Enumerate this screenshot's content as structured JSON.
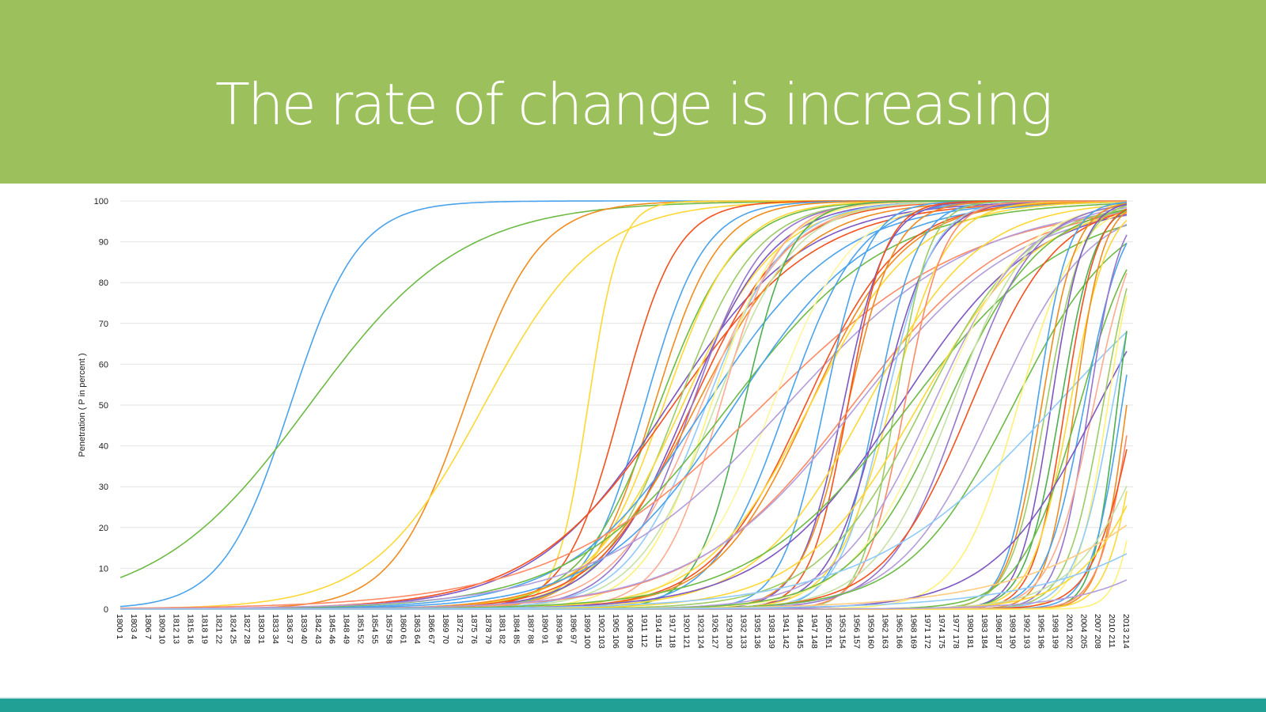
{
  "slide": {
    "title": "The rate of change is increasing",
    "banner_color": "#9cc15c",
    "footer_color": "#21a096"
  },
  "chart_data": {
    "type": "line",
    "title": "",
    "xlabel": "",
    "ylabel": "Penetration ( P in percent )",
    "ylim": [
      0,
      100
    ],
    "yticks": [
      0,
      10,
      20,
      30,
      40,
      50,
      60,
      70,
      80,
      90,
      100
    ],
    "x_start_year": 1800,
    "x_end_year": 2013,
    "x_tick_step_years": 3,
    "x_tick_format": "year index (year, running index starting at 1)",
    "grid": "horizontal",
    "legend": "none",
    "series_model": "logistic: P(year) = 100 / (1 + exp(-k * (year - midpoint)))",
    "series": [
      {
        "midpoint": 1836,
        "k": 0.14,
        "color": "#4aa3ec"
      },
      {
        "midpoint": 1840,
        "k": 0.062,
        "color": "#6dbb45"
      },
      {
        "midpoint": 1873,
        "k": 0.13,
        "color": "#f08c1e"
      },
      {
        "midpoint": 1877,
        "k": 0.085,
        "color": "#fdd835"
      },
      {
        "midpoint": 1899,
        "k": 0.3,
        "color": "#fdd835"
      },
      {
        "midpoint": 1906,
        "k": 0.17,
        "color": "#f4511e"
      },
      {
        "midpoint": 1911,
        "k": 0.16,
        "color": "#4aa3ec"
      },
      {
        "midpoint": 1913,
        "k": 0.15,
        "color": "#f08c1e"
      },
      {
        "midpoint": 1914,
        "k": 0.12,
        "color": "#6dbb45"
      },
      {
        "midpoint": 1915,
        "k": 0.13,
        "color": "#fdd835"
      },
      {
        "midpoint": 1916,
        "k": 0.07,
        "color": "#7e57c2"
      },
      {
        "midpoint": 1917,
        "k": 0.066,
        "color": "#f4511e"
      },
      {
        "midpoint": 1918,
        "k": 0.12,
        "color": "#9ccc65"
      },
      {
        "midpoint": 1919,
        "k": 0.1,
        "color": "#fdd835"
      },
      {
        "midpoint": 1920,
        "k": 0.11,
        "color": "#7e57c2"
      },
      {
        "midpoint": 1921,
        "k": 0.1,
        "color": "#f4511e"
      },
      {
        "midpoint": 1921,
        "k": 0.13,
        "color": "#9575cd"
      },
      {
        "midpoint": 1922,
        "k": 0.09,
        "color": "#f08c1e"
      },
      {
        "midpoint": 1923,
        "k": 0.11,
        "color": "#ffab91"
      },
      {
        "midpoint": 1924,
        "k": 0.12,
        "color": "#90caf9"
      },
      {
        "midpoint": 1924,
        "k": 0.07,
        "color": "#4aa3ec"
      },
      {
        "midpoint": 1925,
        "k": 0.14,
        "color": "#fff176"
      },
      {
        "midpoint": 1926,
        "k": 0.12,
        "color": "#c5e1a5"
      },
      {
        "midpoint": 1927,
        "k": 0.16,
        "color": "#ffab91"
      },
      {
        "midpoint": 1929,
        "k": 0.06,
        "color": "#6dbb45"
      },
      {
        "midpoint": 1930,
        "k": 0.07,
        "color": "#4aa3ec"
      },
      {
        "midpoint": 1932,
        "k": 0.2,
        "color": "#4caf50"
      },
      {
        "midpoint": 1936,
        "k": 0.045,
        "color": "#ff8a65"
      },
      {
        "midpoint": 1938,
        "k": 0.12,
        "color": "#fff59d"
      },
      {
        "midpoint": 1941,
        "k": 0.05,
        "color": "#b39ddb"
      },
      {
        "midpoint": 1941,
        "k": 0.13,
        "color": "#4aa3ec"
      },
      {
        "midpoint": 1945,
        "k": 0.1,
        "color": "#f4511e"
      },
      {
        "midpoint": 1946,
        "k": 0.1,
        "color": "#f08c1e"
      },
      {
        "midpoint": 1946,
        "k": 0.09,
        "color": "#fdd835"
      },
      {
        "midpoint": 1949,
        "k": 0.22,
        "color": "#4aa3ec"
      },
      {
        "midpoint": 1953,
        "k": 0.22,
        "color": "#7e57c2"
      },
      {
        "midpoint": 1954,
        "k": 0.2,
        "color": "#f08c1e"
      },
      {
        "midpoint": 1954,
        "k": 0.25,
        "color": "#f4511e"
      },
      {
        "midpoint": 1955,
        "k": 0.06,
        "color": "#ff8a65"
      },
      {
        "midpoint": 1956,
        "k": 0.058,
        "color": "#b39ddb"
      },
      {
        "midpoint": 1958,
        "k": 0.085,
        "color": "#fdd835"
      },
      {
        "midpoint": 1960,
        "k": 0.23,
        "color": "#4aa3ec"
      },
      {
        "midpoint": 1961,
        "k": 0.18,
        "color": "#7e57c2"
      },
      {
        "midpoint": 1962,
        "k": 0.2,
        "color": "#90caf9"
      },
      {
        "midpoint": 1963,
        "k": 0.17,
        "color": "#fdd835"
      },
      {
        "midpoint": 1964,
        "k": 0.28,
        "color": "#9ccc65"
      },
      {
        "midpoint": 1965,
        "k": 0.07,
        "color": "#7e57c2"
      },
      {
        "midpoint": 1966,
        "k": 0.24,
        "color": "#ff8a65"
      },
      {
        "midpoint": 1967,
        "k": 0.06,
        "color": "#6dbb45"
      },
      {
        "midpoint": 1969,
        "k": 0.08,
        "color": "#fdd835"
      },
      {
        "midpoint": 1970,
        "k": 0.09,
        "color": "#9ccc65"
      },
      {
        "midpoint": 1972,
        "k": 0.1,
        "color": "#b39ddb"
      },
      {
        "midpoint": 1973,
        "k": 0.11,
        "color": "#fff59d"
      },
      {
        "midpoint": 1975,
        "k": 0.1,
        "color": "#6dbb45"
      },
      {
        "midpoint": 1976,
        "k": 0.12,
        "color": "#c5e1a5"
      },
      {
        "midpoint": 1978,
        "k": 0.13,
        "color": "#9575cd"
      },
      {
        "midpoint": 1980,
        "k": 0.11,
        "color": "#f4511e"
      },
      {
        "midpoint": 1985,
        "k": 0.1,
        "color": "#b39ddb"
      },
      {
        "midpoint": 1989,
        "k": 0.09,
        "color": "#6dbb45"
      },
      {
        "midpoint": 1990,
        "k": 0.16,
        "color": "#fff176"
      },
      {
        "midpoint": 1994,
        "k": 0.3,
        "color": "#4aa3ec"
      },
      {
        "midpoint": 1995,
        "k": 0.28,
        "color": "#f08c1e"
      },
      {
        "midpoint": 1996,
        "k": 0.26,
        "color": "#9ccc65"
      },
      {
        "midpoint": 1997,
        "k": 0.3,
        "color": "#7e57c2"
      },
      {
        "midpoint": 1998,
        "k": 0.05,
        "color": "#90caf9"
      },
      {
        "midpoint": 1999,
        "k": 0.27,
        "color": "#4caf50"
      },
      {
        "midpoint": 2000,
        "k": 0.3,
        "color": "#f4511e"
      },
      {
        "midpoint": 2001,
        "k": 0.25,
        "color": "#fdd835"
      },
      {
        "midpoint": 2002,
        "k": 0.33,
        "color": "#f08c1e"
      },
      {
        "midpoint": 2003,
        "k": 0.16,
        "color": "#6dbb45"
      },
      {
        "midpoint": 2004,
        "k": 0.24,
        "color": "#4aa3ec"
      },
      {
        "midpoint": 2005,
        "k": 0.3,
        "color": "#9575cd"
      },
      {
        "midpoint": 2006,
        "k": 0.22,
        "color": "#ffab91"
      },
      {
        "midpoint": 2007,
        "k": 0.09,
        "color": "#7e57c2"
      },
      {
        "midpoint": 2008,
        "k": 0.26,
        "color": "#9ccc65"
      },
      {
        "midpoint": 2009,
        "k": 0.3,
        "color": "#fff176"
      },
      {
        "midpoint": 2010,
        "k": 0.25,
        "color": "#90caf9"
      },
      {
        "midpoint": 2011,
        "k": 0.38,
        "color": "#4caf50"
      },
      {
        "midpoint": 2012,
        "k": 0.3,
        "color": "#4aa3ec"
      },
      {
        "midpoint": 2013,
        "k": 0.35,
        "color": "#f08c1e"
      },
      {
        "midpoint": 2014,
        "k": 0.3,
        "color": "#ff8a65"
      },
      {
        "midpoint": 2015,
        "k": 0.22,
        "color": "#f4511e"
      },
      {
        "midpoint": 2016,
        "k": 0.3,
        "color": "#fdd835"
      },
      {
        "midpoint": 2017,
        "k": 0.4,
        "color": "#fff176"
      },
      {
        "midpoint": 2020,
        "k": 0.12,
        "color": "#c5e1a5"
      },
      {
        "midpoint": 2022,
        "k": 0.12,
        "color": "#fdd835"
      },
      {
        "midpoint": 2040,
        "k": 0.05,
        "color": "#ffcc80"
      },
      {
        "midpoint": 2045,
        "k": 0.08,
        "color": "#b39ddb"
      },
      {
        "midpoint": 2050,
        "k": 0.05,
        "color": "#90caf9"
      }
    ]
  }
}
